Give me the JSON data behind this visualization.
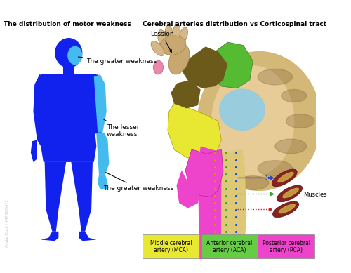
{
  "title_left": "The distribution of motor weakness",
  "title_right": "Cerebral arteries distribution vs Corticospinal tract",
  "label_greater_upper": "The greater weakness",
  "label_lesser": "The lesser\nweakness",
  "label_greater_lower": "The greater weakness",
  "label_lesion": "Lession",
  "label_muscles": "Muscles",
  "legend_mca": "Middle cerebral\nartery (MCA)",
  "legend_aca": "Anterior cerebral\nartery (ACA)",
  "legend_pca": "Posterior cerebral\nartery (PCA)",
  "color_mca": "#e8e832",
  "color_aca": "#66cc44",
  "color_pca": "#ee44cc",
  "color_body_blue": "#1122ee",
  "color_body_light": "#44bbee",
  "color_brain_olive": "#6b5a1a",
  "color_brain_green": "#55bb33",
  "color_brain_light_blue": "#99ccdd",
  "color_brain_tan_outer": "#d4b878",
  "color_brain_tan_inner": "#e8cc98",
  "color_brain_brown": "#8b6a3a",
  "color_tract_tan": "#ddc878",
  "color_muscle_red": "#882222",
  "color_muscle_stripe": "#ccaa44"
}
